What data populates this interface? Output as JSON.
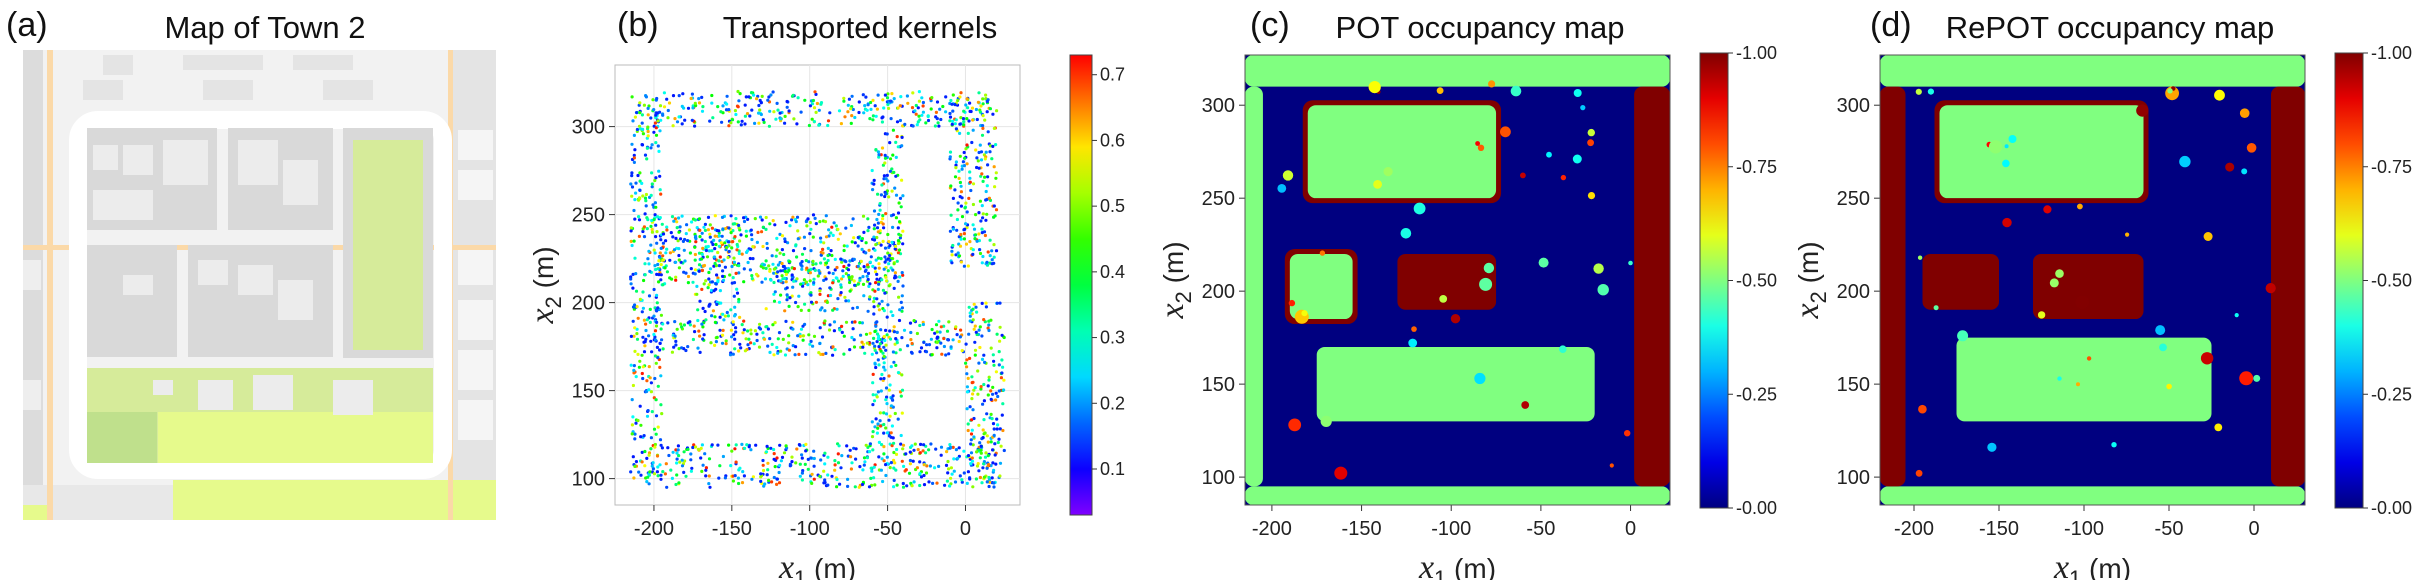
{
  "panels": {
    "a": {
      "label": "(a)",
      "title": "Map of Town 2"
    },
    "b": {
      "label": "(b)",
      "title": "Transported kernels"
    },
    "c": {
      "label": "(c)",
      "title": "POT occupancy map"
    },
    "d": {
      "label": "(d)",
      "title": "RePOT occupancy map"
    }
  },
  "axes": {
    "xlabel_var": "x",
    "xlabel_sub": "1",
    "ylabel_var": "x",
    "ylabel_sub": "2",
    "unit": "(m)"
  },
  "colors": {
    "map_background": "#f2f2f2",
    "map_road": "#ffffff",
    "map_block": "#d9d9d9",
    "map_building": "#e8e8e8",
    "map_park": "#d6eb9a",
    "map_lime": "#e6fa8c",
    "map_orange_road": "#fbd9a8",
    "occ_free": "#00007f",
    "occ_unknown": "#7dff7a",
    "occ_occupied": "#7f0000",
    "scatter_low": "#7f00ff",
    "scatter_mid": "#22ccdd",
    "scatter_high": "#ff2200"
  },
  "chart_data": [
    {
      "panel": "b",
      "type": "scatter",
      "title": "Transported kernels",
      "xlabel": "x1 (m)",
      "ylabel": "x2 (m)",
      "xlim": [
        -225,
        35
      ],
      "ylim": [
        85,
        335
      ],
      "xticks": [
        -200,
        -150,
        -100,
        -50,
        0
      ],
      "yticks": [
        100,
        150,
        200,
        250,
        300
      ],
      "colorbar": {
        "ticks": [
          "0.1",
          "0.2",
          "0.3",
          "0.4",
          "0.5",
          "0.6",
          "0.7"
        ],
        "range": [
          0.03,
          0.73
        ]
      },
      "clusters": [
        {
          "x": [
            -200,
            15
          ],
          "y": [
            300,
            320
          ]
        },
        {
          "x": [
            -215,
            -195
          ],
          "y": [
            100,
            320
          ]
        },
        {
          "x": [
            -205,
            20
          ],
          "y": [
            95,
            120
          ]
        },
        {
          "x": [
            0,
            25
          ],
          "y": [
            95,
            200
          ]
        },
        {
          "x": [
            -10,
            20
          ],
          "y": [
            220,
            315
          ]
        },
        {
          "x": [
            -200,
            -40
          ],
          "y": [
            210,
            250
          ]
        },
        {
          "x": [
            -200,
            0
          ],
          "y": [
            170,
            190
          ]
        },
        {
          "x": [
            -60,
            -40
          ],
          "y": [
            120,
            300
          ]
        },
        {
          "x": [
            -130,
            -60
          ],
          "y": [
            195,
            225
          ]
        },
        {
          "x": [
            -175,
            -145
          ],
          "y": [
            190,
            245
          ]
        }
      ]
    },
    {
      "panel": "c",
      "type": "heatmap",
      "title": "POT occupancy map",
      "xlabel": "x1 (m)",
      "ylabel": "x2 (m)",
      "xlim": [
        -215,
        22
      ],
      "ylim": [
        85,
        327
      ],
      "xticks": [
        -200,
        -150,
        -100,
        -50,
        0
      ],
      "yticks": [
        100,
        150,
        200,
        250,
        300
      ],
      "colorbar": {
        "ticks": [
          "-0.00",
          "-0.25",
          "-0.50",
          "-0.75",
          "-1.00"
        ],
        "range": [
          0,
          1
        ]
      },
      "background_value": 0.0,
      "regions": [
        {
          "x": [
            -180,
            -75
          ],
          "y": [
            250,
            300
          ],
          "value": 0.5,
          "rim": 1.0
        },
        {
          "x": [
            -190,
            -155
          ],
          "y": [
            185,
            220
          ],
          "value": 0.5,
          "rim": 1.0
        },
        {
          "x": [
            -130,
            -75
          ],
          "y": [
            190,
            220
          ],
          "value": 1.0
        },
        {
          "x": [
            -175,
            -20
          ],
          "y": [
            130,
            170
          ],
          "value": 0.5
        },
        {
          "x": [
            -215,
            22
          ],
          "y": [
            310,
            327
          ],
          "value": 0.5
        },
        {
          "x": [
            -215,
            22
          ],
          "y": [
            85,
            95
          ],
          "value": 0.5
        },
        {
          "x": [
            2,
            22
          ],
          "y": [
            95,
            310
          ],
          "value": 1.0
        },
        {
          "x": [
            -215,
            -205
          ],
          "y": [
            95,
            310
          ],
          "value": 0.5
        }
      ]
    },
    {
      "panel": "d",
      "type": "heatmap",
      "title": "RePOT occupancy map",
      "xlabel": "x1 (m)",
      "ylabel": "x2 (m)",
      "xlim": [
        -220,
        30
      ],
      "ylim": [
        85,
        327
      ],
      "xticks": [
        -200,
        -150,
        -100,
        -50,
        0
      ],
      "yticks": [
        100,
        150,
        200,
        250,
        300
      ],
      "colorbar": {
        "ticks": [
          "-0.00",
          "-0.25",
          "-0.50",
          "-0.75",
          "-1.00"
        ],
        "range": [
          0,
          1
        ]
      },
      "background_value": 0.0,
      "regions": [
        {
          "x": [
            -185,
            -65
          ],
          "y": [
            250,
            300
          ],
          "value": 0.5,
          "rim": 1.0
        },
        {
          "x": [
            -195,
            -150
          ],
          "y": [
            190,
            220
          ],
          "value": 1.0
        },
        {
          "x": [
            -130,
            -65
          ],
          "y": [
            185,
            220
          ],
          "value": 1.0
        },
        {
          "x": [
            -175,
            -25
          ],
          "y": [
            130,
            175
          ],
          "value": 0.5
        },
        {
          "x": [
            -220,
            30
          ],
          "y": [
            310,
            327
          ],
          "value": 0.5
        },
        {
          "x": [
            -220,
            30
          ],
          "y": [
            85,
            95
          ],
          "value": 0.5
        },
        {
          "x": [
            10,
            30
          ],
          "y": [
            95,
            310
          ],
          "value": 1.0
        },
        {
          "x": [
            -220,
            -205
          ],
          "y": [
            95,
            310
          ],
          "value": 1.0
        }
      ]
    }
  ]
}
